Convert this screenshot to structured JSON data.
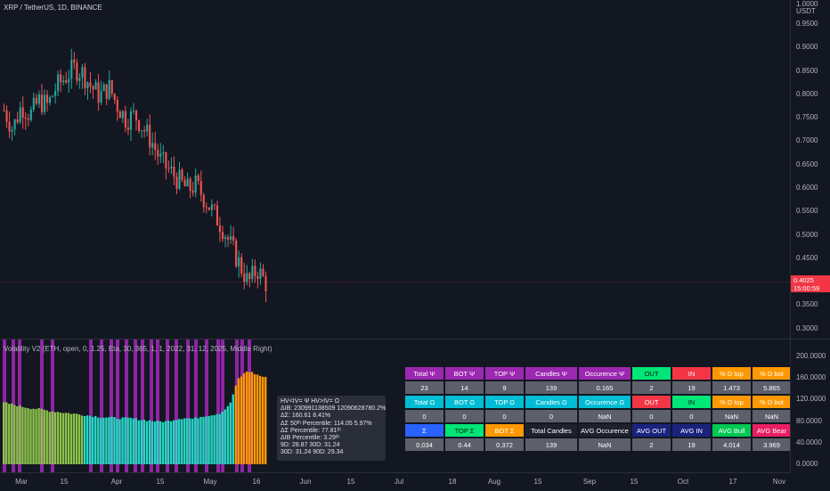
{
  "symbol_label": "XRP / TetherUS, 1D, BINANCE",
  "indicator_title": "Volatility V2 (ETH, open, 0, 1.25, Eta, 30, 365, 1, 1, 2022, 31, 12, 2025, Middle Right)",
  "price_axis": {
    "currency": "USDT",
    "labels": [
      "1.0000",
      "0.9500",
      "0.9000",
      "0.8500",
      "0.8000",
      "0.7500",
      "0.7000",
      "0.6500",
      "0.6000",
      "0.5500",
      "0.5000",
      "0.4500",
      "0.4000",
      "0.3500",
      "0.3000"
    ],
    "current_price": "0.4025",
    "countdown": "15:00:59",
    "current_color": "#f23645"
  },
  "osc_axis": {
    "labels": [
      "200.0000",
      "160.0000",
      "120.0000",
      "80.0000",
      "40.0000",
      "0.0000"
    ]
  },
  "time_axis": {
    "labels": [
      "Mar",
      "15",
      "Apr",
      "15",
      "May",
      "16",
      "Jun",
      "15",
      "Jul",
      "18",
      "Aug",
      "15",
      "Sep",
      "15",
      "Oct",
      "17",
      "Nov"
    ]
  },
  "colors": {
    "background": "#131722",
    "up": "#26a69a",
    "down": "#ef5350",
    "signal_bar": "#9c27b0",
    "osc_green": "#8bc34a",
    "osc_cyan": "#26d7c4",
    "osc_orange": "#ff9800"
  },
  "infobox": {
    "lines": [
      "HV<IV= Ψ  HV>IV= Ω",
      "ΔIB: 230991138509  12090628780.2%",
      "ΔΣ: 160.61  8.41%",
      "ΔΣ 50ᵗʰ Percentile: 114.05  5.97%",
      "ΔΣ Percentile: 77.81ᵗʰ",
      "ΔIB Percentile: 3.29ᵗʰ",
      "9D: 28.87  30D: 31.24",
      "30D: 31.24  90D: 29.34"
    ]
  },
  "stats_table": {
    "rows": [
      [
        {
          "text": "Total Ψ",
          "cls": "c-purple"
        },
        {
          "text": "BOT Ψ",
          "cls": "c-purple"
        },
        {
          "text": "TOP Ψ",
          "cls": "c-purple"
        },
        {
          "text": "Candles Ψ",
          "cls": "c-purple w2"
        },
        {
          "text": "Occurence Ψ",
          "cls": "c-purple w2"
        },
        {
          "text": "OUT",
          "cls": "c-green"
        },
        {
          "text": "IN",
          "cls": "c-red"
        },
        {
          "text": "% D top",
          "cls": "c-orange"
        },
        {
          "text": "% D bot",
          "cls": "c-orange"
        }
      ],
      [
        {
          "text": "23",
          "cls": "c-gray"
        },
        {
          "text": "14",
          "cls": "c-gray"
        },
        {
          "text": "9",
          "cls": "c-gray"
        },
        {
          "text": "139",
          "cls": "c-gray w2"
        },
        {
          "text": "0.165",
          "cls": "c-gray w2"
        },
        {
          "text": "2",
          "cls": "c-gray"
        },
        {
          "text": "19",
          "cls": "c-gray"
        },
        {
          "text": "1.473",
          "cls": "c-gray"
        },
        {
          "text": "5.865",
          "cls": "c-gray"
        }
      ],
      [
        {
          "text": "Total Ω",
          "cls": "c-teal"
        },
        {
          "text": "BOT Ω",
          "cls": "c-teal"
        },
        {
          "text": "TOP Ω",
          "cls": "c-teal"
        },
        {
          "text": "Candles Ω",
          "cls": "c-teal w2"
        },
        {
          "text": "Occurence Ω",
          "cls": "c-teal w2"
        },
        {
          "text": "OUT",
          "cls": "c-red"
        },
        {
          "text": "IN",
          "cls": "c-green"
        },
        {
          "text": "% D top",
          "cls": "c-orange"
        },
        {
          "text": "% D bot",
          "cls": "c-orange"
        }
      ],
      [
        {
          "text": "0",
          "cls": "c-gray"
        },
        {
          "text": "0",
          "cls": "c-gray"
        },
        {
          "text": "0",
          "cls": "c-gray"
        },
        {
          "text": "0",
          "cls": "c-gray w2"
        },
        {
          "text": "NaN",
          "cls": "c-gray w2"
        },
        {
          "text": "0",
          "cls": "c-gray"
        },
        {
          "text": "0",
          "cls": "c-gray"
        },
        {
          "text": "NaN",
          "cls": "c-gray"
        },
        {
          "text": "NaN",
          "cls": "c-gray"
        }
      ],
      [
        {
          "text": "Σ",
          "cls": "c-blue"
        },
        {
          "text": "TOP Σ",
          "cls": "c-green"
        },
        {
          "text": "BOT Σ",
          "cls": "c-orange"
        },
        {
          "text": "Total Candles",
          "cls": "c-dark w2"
        },
        {
          "text": "AVG Occurence",
          "cls": "c-dark w2"
        },
        {
          "text": "AVG OUT",
          "cls": "c-navy"
        },
        {
          "text": "AVG IN",
          "cls": "c-navy"
        },
        {
          "text": "AVG Bull",
          "cls": "c-lime"
        },
        {
          "text": "AVG Bear",
          "cls": "c-magenta"
        }
      ],
      [
        {
          "text": "0.034",
          "cls": "c-gray"
        },
        {
          "text": "0.44",
          "cls": "c-gray"
        },
        {
          "text": "0.372",
          "cls": "c-gray"
        },
        {
          "text": "139",
          "cls": "c-gray w2"
        },
        {
          "text": "NaN",
          "cls": "c-gray w2"
        },
        {
          "text": "2",
          "cls": "c-gray"
        },
        {
          "text": "19",
          "cls": "c-gray"
        },
        {
          "text": "4.014",
          "cls": "c-gray"
        },
        {
          "text": "3.969",
          "cls": "c-gray"
        }
      ]
    ]
  },
  "chart_data": [
    {
      "type": "candlestick",
      "ylim": [
        0.3,
        1.0
      ],
      "close_trend": [
        0.77,
        0.73,
        0.78,
        0.76,
        0.79,
        0.78,
        0.82,
        0.84,
        0.86,
        0.85,
        0.82,
        0.8,
        0.82,
        0.78,
        0.75,
        0.76,
        0.73,
        0.7,
        0.66,
        0.64,
        0.62,
        0.6,
        0.61,
        0.58,
        0.55,
        0.52,
        0.48,
        0.44,
        0.4,
        0.43,
        0.4
      ]
    },
    {
      "type": "area",
      "ylim": [
        0,
        200
      ],
      "values_trend": [
        115,
        112,
        108,
        105,
        103,
        100,
        98,
        96,
        94,
        92,
        90,
        88,
        87,
        86,
        86,
        84,
        82,
        80,
        80,
        84,
        87,
        85,
        90,
        92,
        96,
        110,
        160,
        175,
        168,
        162
      ]
    }
  ]
}
